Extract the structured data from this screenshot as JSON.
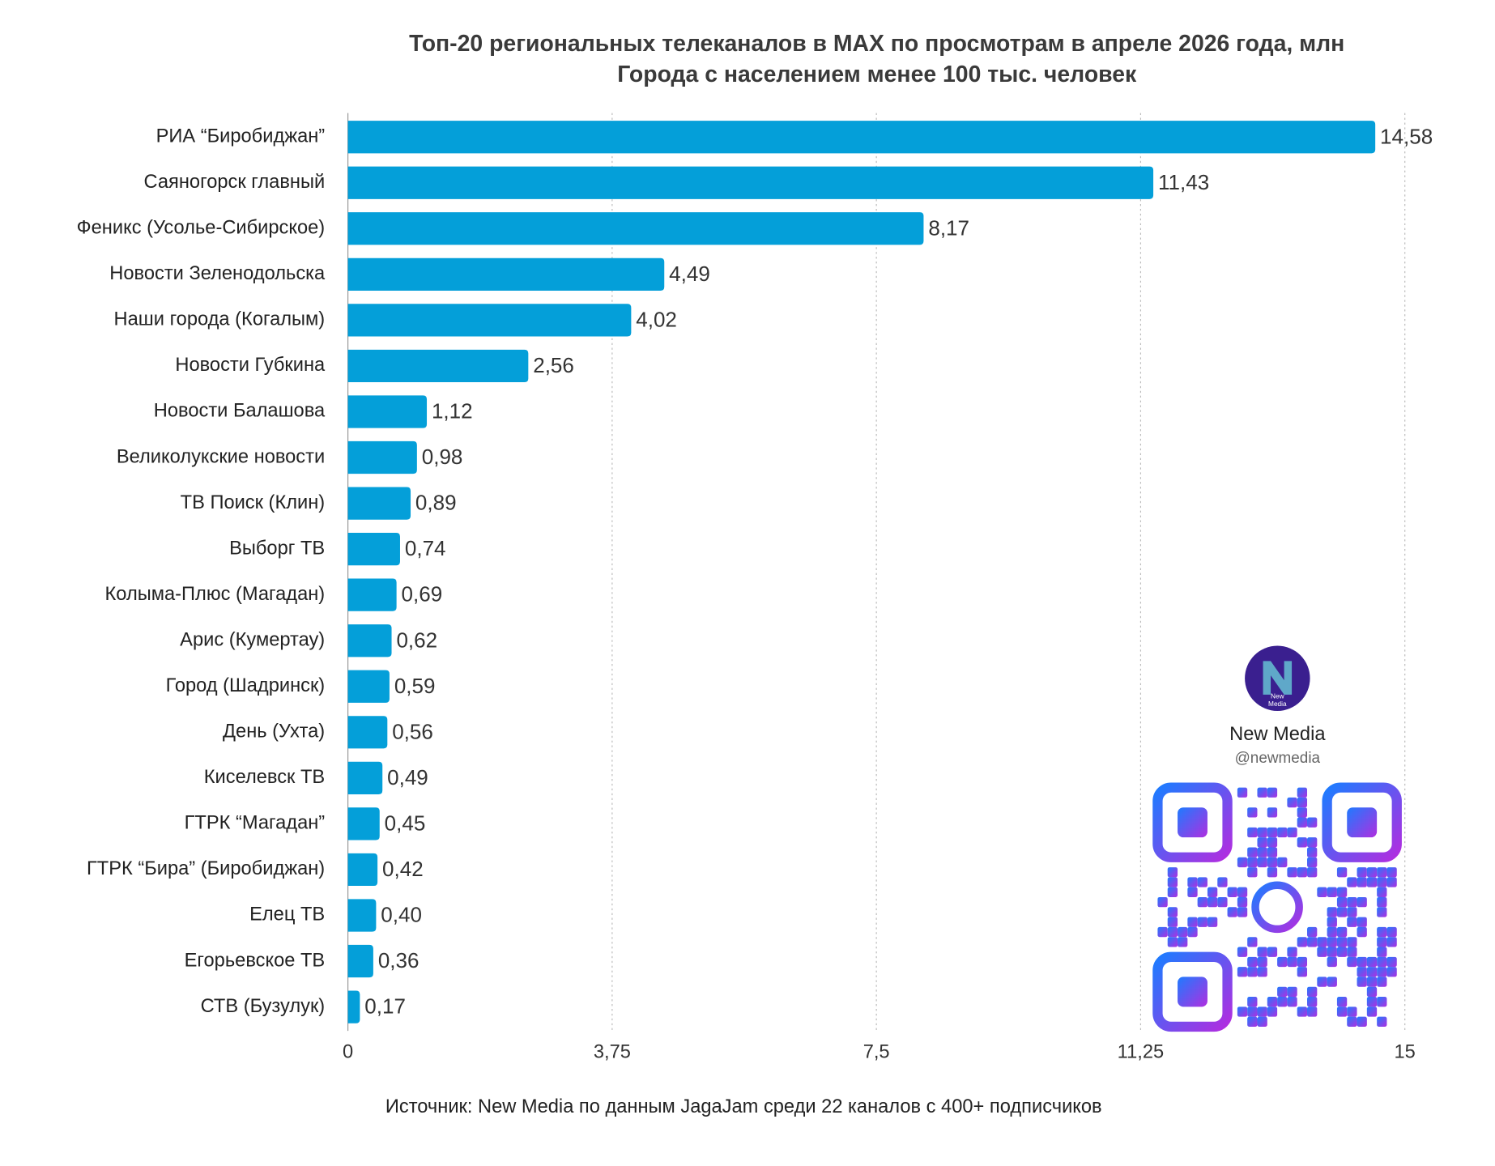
{
  "chart_data": {
    "type": "bar",
    "orientation": "horizontal",
    "title": "Топ-20 региональных телеканалов в MAX по просмотрам в апреле 2026 года, млн",
    "subtitle": "Города с населением менее 100 тыс. человек",
    "source": "Источник: New Media по данным JagaJam среди 22 каналов с 400+ подписчиков",
    "categories": [
      "РИА “Биробиджан”",
      "Саяногорск главный",
      "Феникс (Усолье-Сибирское)",
      "Новости Зеленодольска",
      "Наши города (Когалым)",
      "Новости Губкина",
      "Новости Балашова",
      "Великолукские новости",
      "ТВ Поиск (Клин)",
      "Выборг ТВ",
      "Колыма-Плюс (Магадан)",
      "Арис (Кумертау)",
      "Город (Шадринск)",
      "День (Ухта)",
      "Киселевск ТВ",
      "ГТРК “Магадан”",
      "ГТРК “Бира” (Биробиджан)",
      "Елец ТВ",
      "Егорьевское ТВ",
      "СТВ (Бузулук)"
    ],
    "values": [
      14.58,
      11.43,
      8.17,
      4.49,
      4.02,
      2.56,
      1.12,
      0.98,
      0.89,
      0.74,
      0.69,
      0.62,
      0.59,
      0.56,
      0.49,
      0.45,
      0.42,
      0.4,
      0.36,
      0.17
    ],
    "value_labels": [
      "14,58",
      "11,43",
      "8,17",
      "4,49",
      "4,02",
      "2,56",
      "1,12",
      "0,98",
      "0,89",
      "0,74",
      "0,69",
      "0,62",
      "0,59",
      "0,56",
      "0,49",
      "0,45",
      "0,42",
      "0,40",
      "0,36",
      "0,17"
    ],
    "color": "#049fd9",
    "xlim": [
      0,
      15
    ],
    "xticks": [
      0,
      {
        "value": 3.75,
        "label": "3,75"
      },
      {
        "value": 7.5,
        "label": "7,5"
      },
      {
        "value": 11.25,
        "label": "11,25"
      },
      15
    ],
    "grid": true
  },
  "watermark": {
    "logo_lines": [
      "New",
      "Media"
    ],
    "name": "New Media",
    "handle": "@newmedia"
  }
}
